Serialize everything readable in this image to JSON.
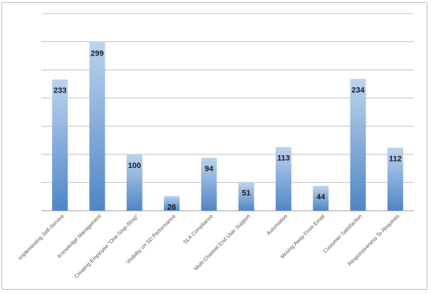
{
  "chart_data": {
    "type": "bar",
    "categories": [
      "Implementing Self-Service",
      "Knowledge Management",
      "Creating Employee \"One-Stop-Shop\"",
      "Visibility on SD Performance",
      "SLA Compliance",
      "Multi-Channel End User Support",
      "Automation",
      "Moving Away From Email",
      "Customer Satisfaction",
      "Responsiveness To Requests"
    ],
    "values": [
      233,
      299,
      100,
      26,
      94,
      51,
      113,
      44,
      234,
      112
    ],
    "ylim": [
      0,
      350
    ],
    "grid": true,
    "data_labels": true,
    "colors": {
      "bar_top": "#bcd3ee",
      "bar_bottom": "#4f86c6",
      "grid": "#bfbfbf"
    }
  }
}
